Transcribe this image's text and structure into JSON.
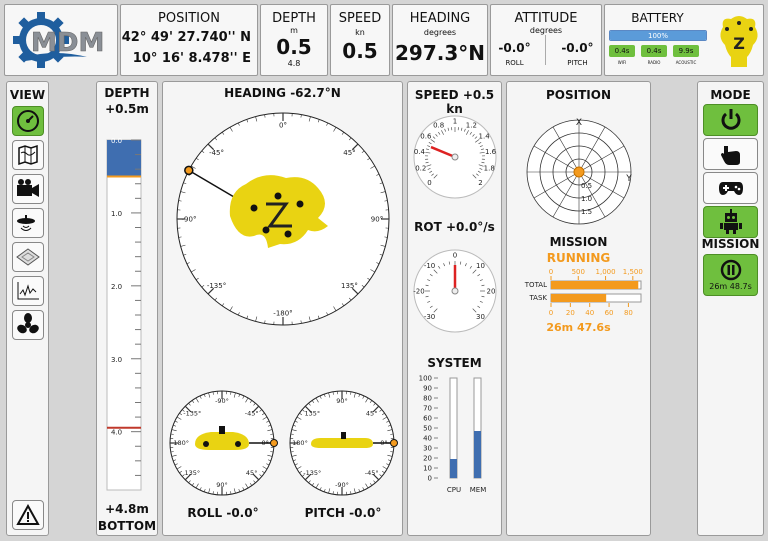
{
  "header": {
    "logo_text": "MDM",
    "position": {
      "title": "POSITION",
      "lat": "42° 49' 27.740'' N",
      "lon": "10° 16' 8.478'' E"
    },
    "depth": {
      "title": "DEPTH",
      "unit": "m",
      "value": "0.5",
      "sub": "4.8"
    },
    "speed": {
      "title": "SPEED",
      "unit": "kn",
      "value": "0.5"
    },
    "heading": {
      "title": "HEADING",
      "unit": "degrees",
      "value": "297.3°N"
    },
    "attitude": {
      "title": "ATTITUDE",
      "unit": "degrees",
      "roll_value": "-0.0°",
      "roll_label": "ROLL",
      "pitch_value": "-0.0°",
      "pitch_label": "PITCH"
    },
    "battery": {
      "title": "BATTERY",
      "level_text": "100%",
      "level": 1.0,
      "timers": [
        {
          "value": "0.4s",
          "label": "WIFI"
        },
        {
          "value": "0.4s",
          "label": "RADIO"
        },
        {
          "value": "9.9s",
          "label": "ACOUSTIC"
        }
      ]
    }
  },
  "view": {
    "title": "VIEW",
    "buttons": [
      "gauge-icon",
      "map-icon",
      "camera-icon",
      "sonar-icon",
      "layers-icon",
      "plot-icon",
      "propeller-icon"
    ],
    "alert": "warning-icon"
  },
  "depth_panel": {
    "title": "DEPTH",
    "top_value": "+0.5m",
    "bottom_value": "+4.8m",
    "bottom_label": "BOTTOM",
    "ticks": [
      "0.0",
      "1.0",
      "2.0",
      "3.0",
      "4.0"
    ],
    "depth_value": 0.5,
    "bottom_depth": 4.8,
    "max_depth": 4.8
  },
  "heading_panel": {
    "title": "HEADING -62.7°N",
    "heading_deg": -62.7,
    "labels": [
      "0°",
      "45°",
      "90°",
      "135°",
      "-180°",
      "-135°",
      "-90°",
      "-45°"
    ]
  },
  "roll_panel": {
    "title": "ROLL -0.0°",
    "labels": [
      "-90°",
      "-45°",
      "-0°",
      "45°",
      "90°",
      "135°",
      "-180°",
      "-135°"
    ]
  },
  "pitch_panel": {
    "title": "PITCH -0.0°",
    "labels": [
      "90°",
      "45°",
      "0°",
      "-45°",
      "-90°",
      "-135°",
      "180°",
      "135°"
    ]
  },
  "speed_panel": {
    "title": "SPEED +0.5 kn",
    "labels": [
      "0",
      "0.2",
      "0.4",
      "0.6",
      "0.8",
      "1",
      "1.2",
      "1.4",
      "1.6",
      "1.8",
      "2"
    ],
    "value": 0.5
  },
  "rot_panel": {
    "title": "ROT +0.0°/s",
    "labels": [
      "-30",
      "-20",
      "-10",
      "0",
      "10",
      "20",
      "30"
    ],
    "value": 0.0
  },
  "system_panel": {
    "title": "SYSTEM",
    "axis": [
      "100",
      "90",
      "80",
      "70",
      "60",
      "50",
      "40",
      "30",
      "20",
      "10",
      "0"
    ],
    "cpu_label": "CPU",
    "mem_label": "MEM",
    "cpu": 19,
    "mem": 47
  },
  "position_panel": {
    "title": "POSITION",
    "x_label": "X",
    "y_label": "Y",
    "ring_labels": [
      "0.5",
      "1.0",
      "1.5"
    ]
  },
  "mission_panel": {
    "title": "MISSION",
    "status": "RUNNING",
    "total_label": "TOTAL",
    "task_label": "TASK",
    "total_axis": [
      "0",
      "500",
      "1,000",
      "1,500"
    ],
    "task_axis": [
      "0",
      "20",
      "40",
      "60",
      "80"
    ],
    "total_value": 1600,
    "total_max": 1650,
    "task_value": 57,
    "task_max": 93,
    "elapsed": "26m 47.6s"
  },
  "mode": {
    "title": "MODE",
    "buttons": [
      "power-icon",
      "hand-icon",
      "gamepad-icon",
      "robot-icon"
    ],
    "mission_title": "MISSION",
    "mission_time": "26m 48.7s"
  },
  "colors": {
    "accent_green": "#6fbf3e",
    "mission_orange": "#f39a1e",
    "bar_blue": "#3f6eb0",
    "vehicle_yellow": "#e9d312"
  }
}
